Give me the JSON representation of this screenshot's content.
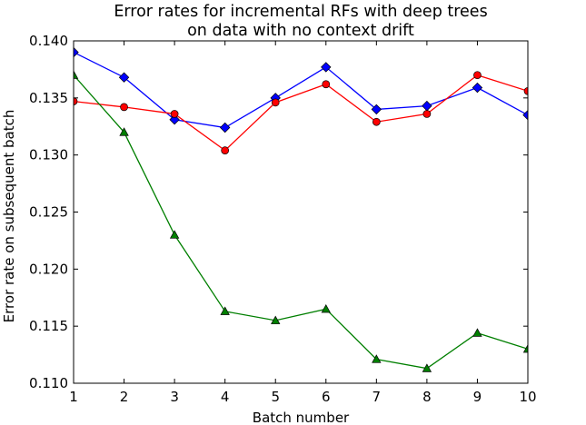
{
  "chart_data": {
    "type": "line",
    "title": [
      "Error rates for incremental RFs with deep trees",
      "on data with no context drift"
    ],
    "xlabel": "Batch number",
    "ylabel": "Error rate on subsequent batch",
    "xlim": [
      1,
      10
    ],
    "ylim": [
      0.11,
      0.14
    ],
    "x": [
      1,
      2,
      3,
      4,
      5,
      6,
      7,
      8,
      9,
      10
    ],
    "xticks": [
      "1",
      "2",
      "3",
      "4",
      "5",
      "6",
      "7",
      "8",
      "9",
      "10"
    ],
    "yticks": [
      "0.110",
      "0.115",
      "0.120",
      "0.125",
      "0.130",
      "0.135",
      "0.140"
    ],
    "ytick_values": [
      0.11,
      0.115,
      0.12,
      0.125,
      0.13,
      0.135,
      0.14
    ],
    "grid": false,
    "series": [
      {
        "color": "#0000ff",
        "marker": "diamond",
        "values": [
          0.139,
          0.1368,
          0.1331,
          0.1324,
          0.135,
          0.1377,
          0.134,
          0.1343,
          0.1359,
          0.1335
        ]
      },
      {
        "color": "#ff0000",
        "marker": "circle",
        "values": [
          0.1347,
          0.1342,
          0.1336,
          0.1304,
          0.1346,
          0.1362,
          0.1329,
          0.1336,
          0.137,
          0.1356
        ]
      },
      {
        "color": "#007f00",
        "marker": "triangle",
        "values": [
          0.137,
          0.132,
          0.123,
          0.1163,
          0.1155,
          0.1165,
          0.1121,
          0.1113,
          0.1144,
          0.113
        ]
      }
    ]
  }
}
